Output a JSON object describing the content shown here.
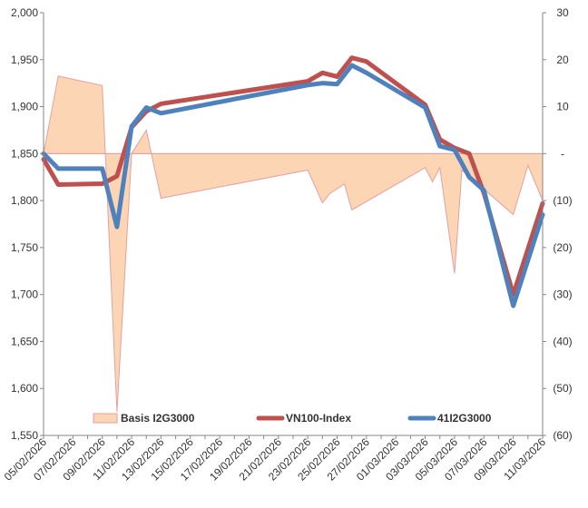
{
  "chart_data": {
    "type": "line",
    "x": [
      "05/02/2026",
      "06/02/2026",
      "07/02/2026",
      "08/02/2026",
      "09/02/2026",
      "10/02/2026",
      "11/02/2026",
      "12/02/2026",
      "13/02/2026",
      "14/02/2026",
      "15/02/2026",
      "16/02/2026",
      "17/02/2026",
      "18/02/2026",
      "19/02/2026",
      "20/02/2026",
      "21/02/2026",
      "22/02/2026",
      "23/02/2026",
      "24/02/2026",
      "25/02/2026",
      "26/02/2026",
      "27/02/2026",
      "28/02/2026",
      "01/03/2026",
      "02/03/2026",
      "03/03/2026",
      "04/03/2026",
      "05/03/2026",
      "06/03/2026",
      "07/03/2026",
      "08/03/2026",
      "09/03/2026",
      "10/03/2026",
      "11/03/2026"
    ],
    "x_tick_labels": [
      "05/02/2026",
      "07/02/2026",
      "09/02/2026",
      "11/02/2026",
      "13/02/2026",
      "15/02/2026",
      "17/02/2026",
      "19/02/2026",
      "21/02/2026",
      "23/02/2026",
      "25/02/2026",
      "27/02/2026",
      "01/03/2026",
      "03/03/2026",
      "05/03/2026",
      "07/03/2026",
      "09/03/2026",
      "11/03/2026"
    ],
    "y_left": {
      "ticks": [
        "1,550",
        "1,600",
        "1,650",
        "1,700",
        "1,750",
        "1,800",
        "1,850",
        "1,900",
        "1,950",
        "2,000"
      ],
      "ylim": [
        1550,
        2000
      ]
    },
    "y_right": {
      "ticks": [
        "(60)",
        "(50)",
        "(40)",
        "(30)",
        "(20)",
        "(10)",
        "-",
        "10",
        "20",
        "30"
      ],
      "ylim": [
        -60,
        30
      ]
    },
    "series": [
      {
        "name": "Basis I2G3000",
        "type": "area",
        "axis": "right",
        "color": "#FCD5B5",
        "edge_color": "#E6A0A0",
        "points": [
          [
            "05/02/2026",
            0
          ],
          [
            "06/02/2026",
            16.5
          ],
          [
            "09/02/2026",
            14.5
          ],
          [
            "10/02/2026",
            -55
          ],
          [
            "11/02/2026",
            0
          ],
          [
            "12/02/2026",
            5
          ],
          [
            "13/02/2026",
            -9.5
          ],
          [
            "23/02/2026",
            -3.5
          ],
          [
            "24/02/2026",
            -10.5
          ],
          [
            "24.5/02/2026",
            -8.5
          ],
          [
            "25.5/02/2026",
            -6.5
          ],
          [
            "26/02/2026",
            -12
          ],
          [
            "03/03/2026",
            -3
          ],
          [
            "03.5/03/2026",
            -6
          ],
          [
            "04/03/2026",
            -3
          ],
          [
            "05/03/2026",
            -25.5
          ],
          [
            "05.5/03/2026",
            -3.5
          ],
          [
            "09/03/2026",
            -13
          ],
          [
            "10/03/2026",
            -2.5
          ],
          [
            "11/03/2026",
            -10
          ]
        ]
      },
      {
        "name": "VN100-Index",
        "type": "line",
        "axis": "left",
        "color": "#C0504D",
        "points": [
          [
            "05/02/2026",
            1844
          ],
          [
            "06/02/2026",
            1817
          ],
          [
            "09/02/2026",
            1818
          ],
          [
            "10/02/2026",
            1826
          ],
          [
            "11/02/2026",
            1878
          ],
          [
            "12/02/2026",
            1895
          ],
          [
            "13/02/2026",
            1903
          ],
          [
            "23/02/2026",
            1927
          ],
          [
            "24/02/2026",
            1936
          ],
          [
            "25/02/2026",
            1932
          ],
          [
            "26/02/2026",
            1952
          ],
          [
            "27/02/2026",
            1948
          ],
          [
            "03/03/2026",
            1902
          ],
          [
            "04/03/2026",
            1865
          ],
          [
            "05/03/2026",
            1856
          ],
          [
            "06/03/2026",
            1850
          ],
          [
            "07/03/2026",
            1808
          ],
          [
            "09/03/2026",
            1700
          ],
          [
            "11/03/2026",
            1797
          ]
        ]
      },
      {
        "name": "41I2G3000",
        "type": "line",
        "axis": "left",
        "color": "#4F81BD",
        "points": [
          [
            "05/02/2026",
            1850
          ],
          [
            "06/02/2026",
            1834
          ],
          [
            "09/02/2026",
            1834
          ],
          [
            "10/02/2026",
            1772
          ],
          [
            "11/02/2026",
            1879
          ],
          [
            "12/02/2026",
            1899
          ],
          [
            "13/02/2026",
            1893
          ],
          [
            "23/02/2026",
            1923
          ],
          [
            "24/02/2026",
            1925
          ],
          [
            "25/02/2026",
            1924
          ],
          [
            "26/02/2026",
            1944
          ],
          [
            "27/02/2026",
            1936
          ],
          [
            "03/03/2026",
            1899
          ],
          [
            "04/03/2026",
            1858
          ],
          [
            "05/03/2026",
            1854
          ],
          [
            "06/03/2026",
            1825
          ],
          [
            "07/03/2026",
            1811
          ],
          [
            "09/03/2026",
            1688
          ],
          [
            "11/03/2026",
            1785
          ]
        ]
      }
    ],
    "legend": {
      "position": "bottom-inside",
      "entries": [
        "Basis I2G3000",
        "VN100-Index",
        "41I2G3000"
      ]
    },
    "grid": false,
    "title": "",
    "xlabel": "",
    "ylabel": ""
  }
}
